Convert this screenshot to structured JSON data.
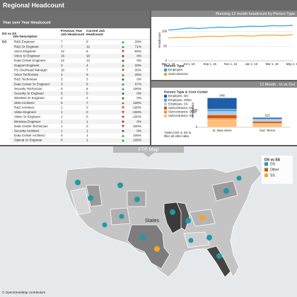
{
  "header": {
    "title": "Regional Headcount"
  },
  "table": {
    "title": "Year over Year Headcount",
    "columns": [
      [
        "DS vs SS"
      ],
      [
        "Job Description"
      ],
      [
        "Previous Year",
        "Job Headcount"
      ],
      [
        "Current Job",
        "Headcount"
      ]
    ],
    "group": "DS",
    "rows": [
      [
        "R&S Engineer",
        7,
        9,
        "29%"
      ],
      [
        "R&S Sr Engineer",
        7,
        12,
        "71%"
      ],
      [
        "Voice Engineer",
        12,
        6,
        "-50%"
      ],
      [
        "Voice Sr Engineer",
        16,
        16,
        "0%"
      ],
      [
        "Data Center Engineer",
        12,
        12,
        "0%"
      ],
      [
        "Support Engineer",
        3,
        4,
        "33%"
      ],
      [
        "PS Overhead Manager",
        10,
        7,
        "-30%"
      ],
      [
        "Voice Technician",
        4,
        5,
        "25%"
      ],
      [
        "R&S Technician",
        3,
        3,
        "0%"
      ],
      [
        "Data Center Sr Engineer",
        3,
        5,
        "67%"
      ],
      [
        "Security Technician",
        0,
        5,
        "100%"
      ],
      [
        "Security Sr Engineer",
        5,
        5,
        "0%"
      ],
      [
        "Wireless Sr Engineer",
        2,
        2,
        "0%"
      ],
      [
        "SDN Architect",
        0,
        7,
        "100%"
      ],
      [
        "R&S Architect",
        1,
        0,
        "-100%"
      ],
      [
        "Video Engineer",
        1,
        0,
        "-100%"
      ],
      [
        "Video Sr Engineer",
        1,
        0,
        "-100%"
      ],
      [
        "Wireless Engineer",
        1,
        1,
        "0%"
      ],
      [
        "Data Center Technician",
        1,
        0,
        "-100%"
      ],
      [
        "Security Architect",
        1,
        1,
        "0%"
      ],
      [
        "Data Center Architect",
        0,
        1,
        "100%"
      ],
      [
        "Optical Sr Engineer",
        0,
        1,
        "100%"
      ]
    ]
  },
  "chart_data": [
    {
      "type": "line",
      "title": "Running 12 month headcount by Person Type",
      "y_label": "Headcount",
      "categories": [
        "May 1, 15",
        null,
        "Jul 1, 15",
        null,
        "Sep 1, 15",
        null,
        "Nov 1, 15",
        null,
        "Jan 1, 16",
        null,
        "Mar 1, 16",
        null,
        "May 1, 16"
      ],
      "legend_title": "Person Type",
      "series": [
        {
          "name": "Employee",
          "color": "#2a9fd6",
          "values": [
            105,
            108,
            112,
            110,
            113,
            115,
            114,
            116,
            118,
            117,
            120,
            119,
            121
          ]
        },
        {
          "name": "Subcontractor",
          "color": "#f5a623",
          "values": [
            78,
            80,
            79,
            82,
            84,
            83,
            85,
            86,
            84,
            87,
            88,
            86,
            89
          ]
        }
      ],
      "ylim": [
        0,
        140
      ],
      "yticks": [
        0,
        50,
        100
      ],
      "grid": true
    },
    {
      "type": "stacked_bar",
      "title": "12 Month - In vs Out",
      "y_label": "Headcount",
      "categories": [
        "In: New Hires",
        "Out: Terms"
      ],
      "legend_title": "Person Type & Cost Center",
      "series": [
        {
          "name": "Employee, DS",
          "color": "#1f5fa8",
          "values": [
            130,
            15
          ]
        },
        {
          "name": "Employee, Other",
          "color": "#5b9bd5",
          "values": [
            30,
            10
          ]
        },
        {
          "name": "Employee, SS",
          "color": "#a8cde8",
          "values": [
            40,
            20
          ]
        },
        {
          "name": "Subcontractor, DS",
          "color": "#d9540b",
          "values": [
            40,
            20
          ]
        },
        {
          "name": "Subcontractor, Other",
          "color": "#f28e2b",
          "values": [
            16,
            10
          ]
        },
        {
          "name": "Subcontractor, SS",
          "color": "#ffbe7d",
          "values": [
            90,
            40
          ]
        }
      ],
      "totals": [
        346,
        115
      ],
      "ylim": [
        0,
        400
      ],
      "yticks": [
        0,
        200
      ],
      "note": [
        "*Select DS or SS to",
        "filter all other data"
      ]
    }
  ],
  "map": {
    "title": "FTE Map",
    "legend_title": "DS vs SS",
    "legend": [
      {
        "name": "DS",
        "color": "#1f9aa8"
      },
      {
        "name": "Other",
        "color": "#d9540b"
      },
      {
        "name": "SS",
        "color": "#f5a623"
      }
    ],
    "label": "States",
    "credit": "© OpenStreetMap contributors"
  }
}
